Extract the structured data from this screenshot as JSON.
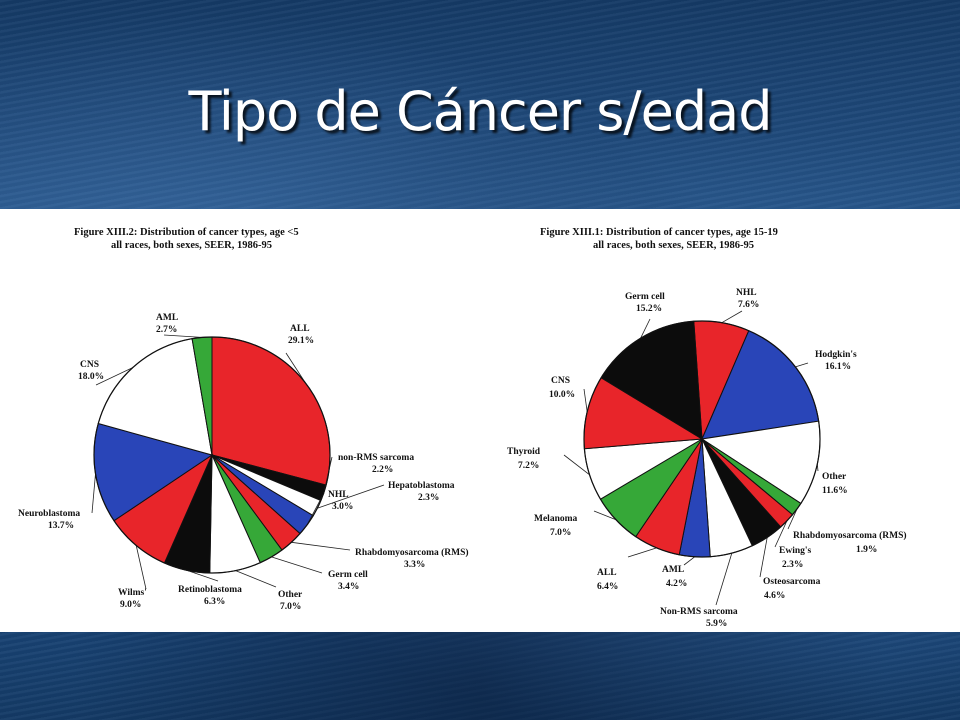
{
  "slide": {
    "title": "Tipo de Cáncer s/edad"
  },
  "colors": {
    "red": "#e8252a",
    "green": "#36a838",
    "blue": "#2945b8",
    "black": "#0c0c0c",
    "white": "#ffffff"
  },
  "chart_data": [
    {
      "type": "pie",
      "title": "Figure XIII.2: Distribution of cancer types, age <5",
      "subtitle": "all races, both sexes, SEER, 1986-95",
      "slices": [
        {
          "label": "ALL",
          "value": 29.1,
          "value_label": "29.1%",
          "color": "red"
        },
        {
          "label": "non-RMS sarcoma",
          "value": 2.2,
          "value_label": "2.2%",
          "color": "black"
        },
        {
          "label": "Hepatoblastoma",
          "value": 2.3,
          "value_label": "2.3%",
          "color": "white"
        },
        {
          "label": "NHL",
          "value": 3.0,
          "value_label": "3.0%",
          "color": "blue"
        },
        {
          "label": "Rhabdomyosarcoma (RMS)",
          "value": 3.3,
          "value_label": "3.3%",
          "color": "red"
        },
        {
          "label": "Germ cell",
          "value": 3.4,
          "value_label": "3.4%",
          "color": "green"
        },
        {
          "label": "Other",
          "value": 7.0,
          "value_label": "7.0%",
          "color": "white"
        },
        {
          "label": "Retinoblastoma",
          "value": 6.3,
          "value_label": "6.3%",
          "color": "black"
        },
        {
          "label": "Wilms'",
          "value": 9.0,
          "value_label": "9.0%",
          "color": "red"
        },
        {
          "label": "Neuroblastoma",
          "value": 13.7,
          "value_label": "13.7%",
          "color": "blue"
        },
        {
          "label": "CNS",
          "value": 18.0,
          "value_label": "18.0%",
          "color": "white"
        },
        {
          "label": "AML",
          "value": 2.7,
          "value_label": "2.7%",
          "color": "green"
        }
      ]
    },
    {
      "type": "pie",
      "title": "Figure XIII.1: Distribution of cancer types, age 15-19",
      "subtitle": "all races, both sexes, SEER, 1986-95",
      "slices": [
        {
          "label": "NHL",
          "value": 7.6,
          "value_label": "7.6%",
          "color": "red"
        },
        {
          "label": "Hodgkin's",
          "value": 16.1,
          "value_label": "16.1%",
          "color": "blue"
        },
        {
          "label": "Other",
          "value": 11.6,
          "value_label": "11.6%",
          "color": "white"
        },
        {
          "label": "Rhabdomyosarcoma (RMS)",
          "value": 1.9,
          "value_label": "1.9%",
          "color": "green"
        },
        {
          "label": "Ewing's",
          "value": 2.3,
          "value_label": "2.3%",
          "color": "red"
        },
        {
          "label": "Osteosarcoma",
          "value": 4.6,
          "value_label": "4.6%",
          "color": "black"
        },
        {
          "label": "Non-RMS sarcoma",
          "value": 5.9,
          "value_label": "5.9%",
          "color": "white"
        },
        {
          "label": "AML",
          "value": 4.2,
          "value_label": "4.2%",
          "color": "blue"
        },
        {
          "label": "ALL",
          "value": 6.4,
          "value_label": "6.4%",
          "color": "red"
        },
        {
          "label": "Melanoma",
          "value": 7.0,
          "value_label": "7.0%",
          "color": "green"
        },
        {
          "label": "Thyroid",
          "value": 7.2,
          "value_label": "7.2%",
          "color": "white"
        },
        {
          "label": "CNS",
          "value": 10.0,
          "value_label": "10.0%",
          "color": "red"
        },
        {
          "label": "Germ cell",
          "value": 15.2,
          "value_label": "15.2%",
          "color": "black"
        }
      ]
    }
  ]
}
